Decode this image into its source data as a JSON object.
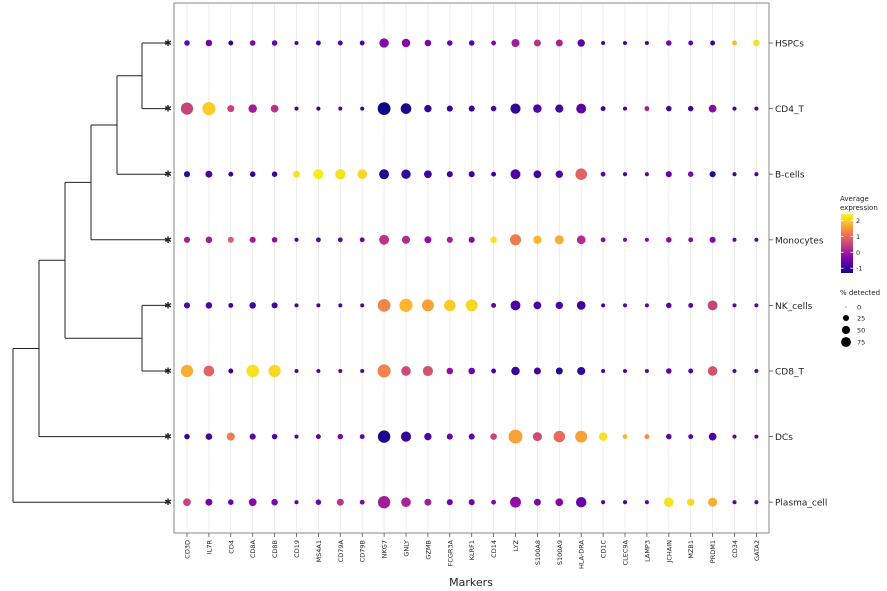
{
  "chart_data": {
    "type": "dotplot",
    "xlabel": "Markers",
    "genes": [
      "CD3D",
      "IL7R",
      "CD4",
      "CD8A",
      "CD8B",
      "CD19",
      "MS4A1",
      "CD79A",
      "CD79B",
      "NKG7",
      "GNLY",
      "GZMB",
      "FCGR3A",
      "KLRF1",
      "CD14",
      "LYZ",
      "S100A8",
      "S100A9",
      "HLA-DRA",
      "CD1C",
      "CLEC9A",
      "LAMP3",
      "JCHAIN",
      "MZB1",
      "PRDM1",
      "CD34",
      "GATA2"
    ],
    "cell_types": [
      "HSPCs",
      "CD4_T",
      "B-cells",
      "Monocytes",
      "NK_cells",
      "CD8_T",
      "DCs",
      "Plasma_cell"
    ],
    "expression": [
      [
        -0.6,
        -0.5,
        -1.0,
        -0.4,
        -0.6,
        -0.8,
        -0.8,
        -0.7,
        -0.8,
        -0.3,
        -0.3,
        -0.4,
        -0.6,
        -0.7,
        -0.3,
        0.0,
        0.3,
        0.1,
        -0.7,
        -0.8,
        -0.8,
        -0.8,
        -0.4,
        -0.6,
        -1.0,
        1.8,
        2.2
      ],
      [
        0.5,
        2.0,
        0.5,
        0.0,
        0.3,
        -0.9,
        -1.0,
        -0.8,
        -0.9,
        -1.4,
        -1.2,
        -1.0,
        -1.0,
        -1.0,
        -0.9,
        -1.0,
        -0.8,
        -0.9,
        -0.7,
        -1.0,
        -0.9,
        0.0,
        -0.9,
        -0.9,
        -0.3,
        -0.9,
        -0.8
      ],
      [
        -1.0,
        -0.8,
        -1.0,
        -1.0,
        -0.9,
        2.2,
        2.3,
        2.2,
        2.1,
        -1.1,
        -1.0,
        -0.9,
        -0.9,
        -0.9,
        -1.0,
        -0.8,
        -0.9,
        -0.8,
        0.9,
        -0.6,
        -0.8,
        -0.7,
        -0.6,
        -0.4,
        -1.1,
        -0.9,
        -0.8
      ],
      [
        0.0,
        0.0,
        0.9,
        0.0,
        -0.2,
        -0.8,
        -0.7,
        -0.6,
        -0.6,
        0.3,
        0.2,
        -0.2,
        0.0,
        -0.3,
        2.2,
        1.2,
        1.8,
        1.7,
        0.2,
        -0.3,
        -0.4,
        -0.3,
        -0.3,
        -0.3,
        -0.3,
        -0.7,
        -0.6
      ],
      [
        -0.8,
        -0.8,
        -0.9,
        -0.9,
        -0.9,
        -0.9,
        -0.9,
        -0.8,
        -0.8,
        1.3,
        1.8,
        1.6,
        2.0,
        2.1,
        -0.7,
        -0.8,
        -0.8,
        -0.8,
        -0.9,
        -0.8,
        -0.7,
        -0.7,
        -0.7,
        -0.7,
        0.5,
        -0.7,
        -0.7
      ],
      [
        1.7,
        0.9,
        -1.0,
        2.2,
        2.1,
        -0.8,
        -0.8,
        -0.7,
        -0.8,
        1.3,
        0.6,
        0.7,
        -0.2,
        -0.6,
        -0.8,
        -1.0,
        -0.9,
        -1.1,
        -1.0,
        -0.8,
        -0.7,
        -0.7,
        -0.7,
        -0.8,
        0.7,
        -0.7,
        -0.7
      ],
      [
        -1.0,
        -0.9,
        1.2,
        -0.7,
        -0.8,
        -0.8,
        -0.7,
        -0.4,
        -0.6,
        -1.2,
        -1.0,
        -0.8,
        -0.6,
        -0.6,
        0.5,
        1.6,
        0.6,
        1.0,
        1.6,
        2.2,
        1.8,
        1.4,
        -0.7,
        -0.7,
        -0.8,
        -0.7,
        -0.7
      ],
      [
        0.5,
        -0.5,
        -0.6,
        -0.3,
        -0.4,
        -0.7,
        -0.5,
        0.3,
        -0.4,
        0.0,
        0.1,
        0.0,
        -0.5,
        -0.5,
        -0.3,
        -0.2,
        -0.4,
        -0.3,
        -0.6,
        -0.7,
        -0.8,
        -0.7,
        2.2,
        2.1,
        1.7,
        -0.7,
        -0.7
      ]
    ],
    "pct_detected": [
      [
        3,
        5,
        2,
        3,
        3,
        1,
        2,
        2,
        2,
        13,
        10,
        5,
        3,
        3,
        2,
        9,
        6,
        6,
        7,
        1,
        1,
        1,
        3,
        2,
        2,
        2,
        5
      ],
      [
        25,
        30,
        6,
        10,
        8,
        1,
        1,
        1,
        1,
        28,
        18,
        7,
        4,
        4,
        3,
        16,
        10,
        9,
        15,
        2,
        1,
        2,
        3,
        3,
        8,
        1,
        1
      ],
      [
        4,
        6,
        2,
        3,
        3,
        6,
        16,
        17,
        14,
        15,
        13,
        8,
        4,
        4,
        2,
        15,
        8,
        7,
        22,
        2,
        1,
        1,
        4,
        3,
        4,
        1,
        1
      ],
      [
        4,
        5,
        4,
        4,
        3,
        1,
        2,
        2,
        2,
        15,
        9,
        6,
        4,
        4,
        5,
        20,
        10,
        12,
        11,
        2,
        1,
        1,
        3,
        2,
        4,
        1,
        1
      ],
      [
        4,
        5,
        2,
        5,
        4,
        1,
        1,
        1,
        1,
        28,
        30,
        24,
        22,
        24,
        2,
        15,
        8,
        7,
        11,
        1,
        1,
        1,
        3,
        2,
        15,
        1,
        1
      ],
      [
        25,
        18,
        2,
        27,
        25,
        1,
        1,
        1,
        1,
        30,
        14,
        16,
        5,
        5,
        2,
        10,
        6,
        6,
        9,
        1,
        1,
        1,
        3,
        2,
        14,
        1,
        1
      ],
      [
        3,
        5,
        9,
        4,
        3,
        1,
        2,
        3,
        2,
        26,
        16,
        7,
        4,
        4,
        5,
        34,
        12,
        22,
        24,
        10,
        2,
        2,
        3,
        2,
        8,
        1,
        1
      ],
      [
        8,
        6,
        3,
        8,
        5,
        1,
        3,
        6,
        2,
        26,
        14,
        6,
        4,
        4,
        2,
        19,
        6,
        8,
        17,
        1,
        1,
        1,
        14,
        7,
        12,
        1,
        1
      ]
    ],
    "colorbar": {
      "title": [
        "Average",
        "expression"
      ],
      "ticks": [
        "2",
        "1",
        "0",
        "-1"
      ],
      "min": -1.3,
      "max": 2.4
    },
    "size_legend": {
      "title": "% detected",
      "labels": [
        "0",
        "25",
        "50",
        "75"
      ],
      "values": [
        0,
        25,
        50,
        75
      ]
    },
    "colorscale": [
      "#0d0887",
      "#5302a3",
      "#8b0aa5",
      "#b83289",
      "#db5c68",
      "#f48849",
      "#febd2a",
      "#f0f921"
    ]
  }
}
